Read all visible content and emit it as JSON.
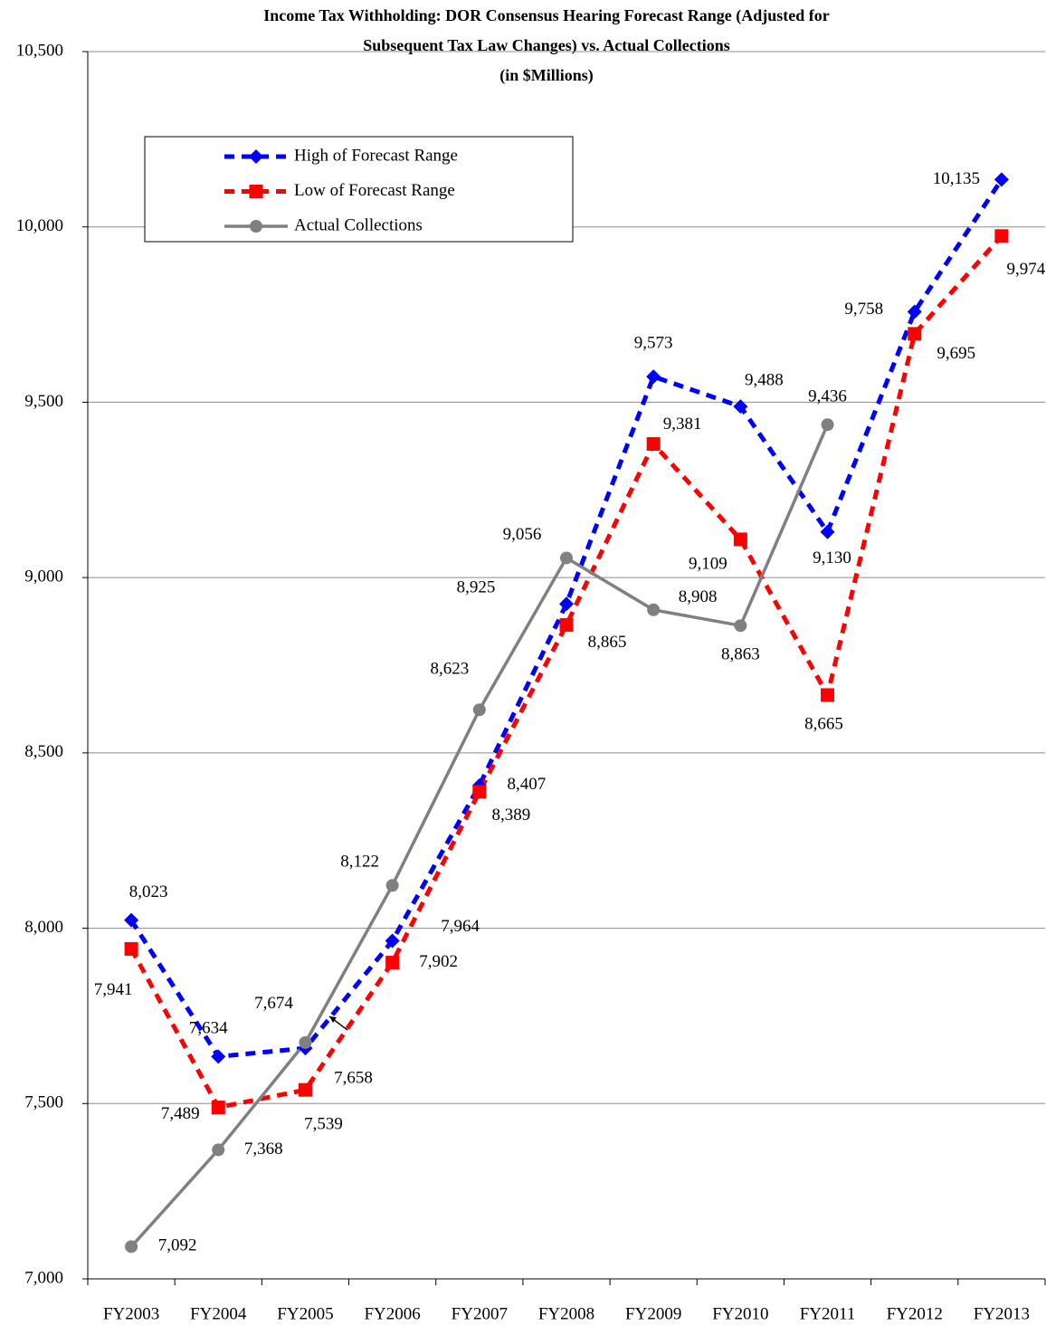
{
  "chart_data": {
    "type": "line",
    "title": [
      "Income Tax Withholding: DOR Consensus Hearing Forecast Range (Adjusted for",
      "Subsequent Tax Law Changes)  vs. Actual Collections",
      "(in $Millions)"
    ],
    "categories": [
      "FY2003",
      "FY2004",
      "FY2005",
      "FY2006",
      "FY2007",
      "FY2008",
      "FY2009",
      "FY2010",
      "FY2011",
      "FY2012",
      "FY2013"
    ],
    "series": [
      {
        "name": "High of Forecast Range",
        "color": "#0000ff",
        "marker": "diamond",
        "dashed": true,
        "values": [
          8023,
          7634,
          7658,
          7964,
          8407,
          8925,
          9573,
          9488,
          9130,
          9758,
          10135
        ],
        "value_labels": [
          "8,023",
          "7,634",
          "7,658",
          "7,964",
          "8,407",
          "8,925",
          "9,573",
          "9,488",
          "9,130",
          "9,758",
          "10,135"
        ]
      },
      {
        "name": "Low of Forecast Range",
        "color": "#ff0000",
        "marker": "square",
        "dashed": true,
        "values": [
          7941,
          7489,
          7539,
          7902,
          8389,
          8865,
          9381,
          9109,
          8665,
          9695,
          9974
        ],
        "value_labels": [
          "7,941",
          "7,489",
          "7,539",
          "7,902",
          "8,389",
          "8,865",
          "9,381",
          "9,109",
          "8,665",
          "9,695",
          "9,974"
        ]
      },
      {
        "name": "Actual Collections",
        "color": "#808080",
        "marker": "circle",
        "dashed": false,
        "values": [
          7092,
          7368,
          7674,
          8122,
          8623,
          9056,
          8908,
          8863,
          9436,
          null,
          null
        ],
        "value_labels": [
          "7,092",
          "7,368",
          "7,674",
          "8,122",
          "8,623",
          "9,056",
          "8,908",
          "8,863",
          "9,436",
          null,
          null
        ]
      }
    ],
    "ylim": [
      7000,
      10500
    ],
    "yticks": [
      {
        "value": 7000,
        "label": "7,000"
      },
      {
        "value": 7500,
        "label": "7,500"
      },
      {
        "value": 8000,
        "label": "8,000"
      },
      {
        "value": 8500,
        "label": "8,500"
      },
      {
        "value": 9000,
        "label": "9,000"
      },
      {
        "value": 9500,
        "label": "9,500"
      },
      {
        "value": 10000,
        "label": "10,000"
      },
      {
        "value": 10500,
        "label": "10,500"
      }
    ],
    "grid": true
  }
}
